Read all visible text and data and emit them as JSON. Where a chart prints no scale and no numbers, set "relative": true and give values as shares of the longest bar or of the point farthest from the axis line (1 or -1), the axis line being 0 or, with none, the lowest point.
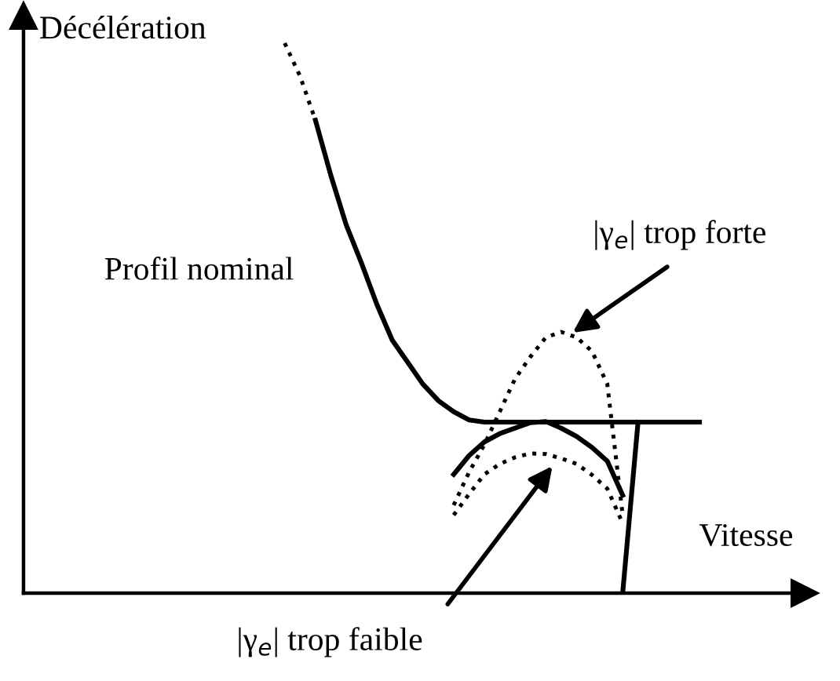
{
  "chart_data": {
    "type": "line",
    "relative": true,
    "xlabel": "Vitesse",
    "ylabel": "Décélération",
    "marker": "none",
    "categories": [
      null,
      null,
      null,
      null,
      null,
      null,
      null,
      null,
      null,
      null,
      null,
      null,
      null,
      null,
      null,
      null,
      null,
      null,
      null,
      null,
      null,
      null,
      null,
      null,
      null,
      null,
      null,
      null,
      null,
      null,
      null,
      null,
      null,
      null,
      null,
      null,
      null,
      null,
      null,
      null,
      null,
      null,
      null,
      null,
      null
    ],
    "series": [
      {
        "color": "#000000",
        "line_style": "dotted",
        "values": [
          null,
          null,
          null,
          null,
          null,
          null,
          null,
          null,
          null,
          null,
          null,
          null,
          null,
          null,
          null,
          null,
          null,
          1.0,
          0.94,
          0.86,
          null,
          null,
          null,
          null,
          null,
          null,
          null,
          null,
          null,
          null,
          null,
          null,
          null,
          null,
          null,
          null,
          null,
          null,
          null,
          null,
          null,
          null,
          null,
          null,
          null
        ]
      },
      {
        "name": "Profil nominal",
        "color": "#000000",
        "line_style": "solid",
        "values": [
          null,
          null,
          null,
          null,
          null,
          null,
          null,
          null,
          null,
          null,
          null,
          null,
          null,
          null,
          null,
          null,
          null,
          null,
          null,
          0.86,
          0.76,
          0.67,
          0.6,
          0.525,
          0.46,
          0.42,
          0.38,
          0.35,
          0.33,
          0.315,
          0.311,
          0.311,
          0.311,
          0.311,
          0.311,
          0.311,
          0.311,
          0.311,
          0.311,
          0.311,
          0.311,
          0.311,
          0.311,
          0.311,
          0.311
        ]
      },
      {
        "color": "#000000",
        "line_style": "dotted",
        "values": [
          null,
          null,
          null,
          null,
          null,
          null,
          null,
          null,
          null,
          null,
          null,
          null,
          null,
          null,
          null,
          null,
          null,
          null,
          null,
          null,
          null,
          null,
          null,
          null,
          null,
          null,
          null,
          null,
          0.16,
          0.22,
          0.27,
          0.33,
          0.39,
          0.43,
          0.465,
          0.475,
          0.465,
          0.44,
          0.38,
          0.142,
          null,
          null,
          null,
          null,
          null
        ]
      },
      {
        "color": "#000000",
        "line_style": "solid",
        "values": [
          null,
          null,
          null,
          null,
          null,
          null,
          null,
          null,
          null,
          null,
          null,
          null,
          null,
          null,
          null,
          null,
          null,
          null,
          null,
          null,
          null,
          null,
          null,
          null,
          null,
          null,
          null,
          null,
          0.216,
          0.25,
          0.275,
          0.29,
          0.3,
          0.31,
          0.312,
          0.3,
          0.285,
          0.265,
          0.24,
          0.178,
          null,
          null,
          null,
          null,
          null
        ]
      },
      {
        "color": "#000000",
        "line_style": "dotted",
        "values": [
          null,
          null,
          null,
          null,
          null,
          null,
          null,
          null,
          null,
          null,
          null,
          null,
          null,
          null,
          null,
          null,
          null,
          null,
          null,
          null,
          null,
          null,
          null,
          null,
          null,
          null,
          null,
          null,
          0.142,
          0.18,
          0.216,
          0.235,
          0.247,
          0.254,
          0.253,
          0.245,
          0.235,
          0.215,
          0.19,
          0.127,
          null,
          null,
          null,
          null,
          null
        ]
      },
      {
        "color": "#000000",
        "line_style": "solid",
        "values": [
          null,
          null,
          null,
          null,
          null,
          null,
          null,
          null,
          null,
          null,
          null,
          null,
          null,
          null,
          null,
          null,
          null,
          null,
          null,
          null,
          null,
          null,
          null,
          null,
          null,
          null,
          null,
          null,
          null,
          null,
          null,
          null,
          null,
          null,
          null,
          null,
          null,
          null,
          null,
          0.0,
          0.311,
          null,
          null,
          null,
          null
        ]
      }
    ],
    "annotations": [
      "|γ$_{e}$| trop forte",
      "|γ$_{e}$| trop faible"
    ]
  }
}
